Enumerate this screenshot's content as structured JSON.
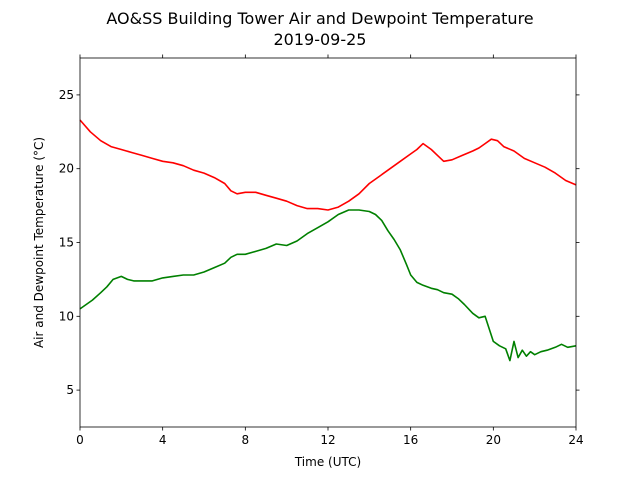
{
  "chart_data": {
    "type": "line",
    "title": "AO&SS Building Tower Air and Dewpoint Temperature",
    "subtitle": "2019-09-25",
    "xlabel": "Time (UTC)",
    "ylabel": "Air and Dewpoint Temperature (°C)",
    "xlim": [
      0,
      24
    ],
    "ylim": [
      2.5,
      27.5
    ],
    "xticks": [
      0,
      4,
      8,
      12,
      16,
      20,
      24
    ],
    "yticks": [
      5,
      10,
      15,
      20,
      25
    ],
    "grid": false,
    "series": [
      {
        "color": "#ff0000",
        "x": [
          0,
          0.5,
          1,
          1.5,
          2,
          2.5,
          3,
          3.5,
          4,
          4.5,
          5,
          5.5,
          6,
          6.5,
          7,
          7.3,
          7.6,
          8,
          8.5,
          9,
          9.5,
          10,
          10.5,
          11,
          11.5,
          12,
          12.5,
          13,
          13.5,
          14,
          14.5,
          15,
          15.5,
          16,
          16.3,
          16.6,
          17,
          17.3,
          17.6,
          18,
          18.5,
          19,
          19.3,
          19.6,
          19.9,
          20.2,
          20.5,
          21,
          21.5,
          22,
          22.5,
          23,
          23.5,
          24
        ],
        "y": [
          23.3,
          22.5,
          21.9,
          21.5,
          21.3,
          21.1,
          20.9,
          20.7,
          20.5,
          20.4,
          20.2,
          19.9,
          19.7,
          19.4,
          19.0,
          18.5,
          18.3,
          18.4,
          18.4,
          18.2,
          18.0,
          17.8,
          17.5,
          17.3,
          17.3,
          17.2,
          17.4,
          17.8,
          18.3,
          19.0,
          19.5,
          20.0,
          20.5,
          21.0,
          21.3,
          21.7,
          21.3,
          20.9,
          20.5,
          20.6,
          20.9,
          21.2,
          21.4,
          21.7,
          22.0,
          21.9,
          21.5,
          21.2,
          20.7,
          20.4,
          20.1,
          19.7,
          19.2,
          18.9
        ]
      },
      {
        "color": "#008000",
        "x": [
          0,
          0.3,
          0.6,
          1,
          1.3,
          1.6,
          2,
          2.3,
          2.6,
          3,
          3.5,
          4,
          4.5,
          5,
          5.5,
          6,
          6.5,
          7,
          7.3,
          7.6,
          8,
          8.5,
          9,
          9.5,
          10,
          10.5,
          11,
          11.5,
          12,
          12.5,
          13,
          13.5,
          14,
          14.3,
          14.6,
          14.9,
          15.2,
          15.5,
          15.8,
          16,
          16.3,
          16.6,
          17,
          17.3,
          17.6,
          18,
          18.3,
          18.6,
          19,
          19.3,
          19.6,
          20,
          20.3,
          20.6,
          20.8,
          21,
          21.2,
          21.4,
          21.6,
          21.8,
          22,
          22.3,
          22.6,
          23,
          23.3,
          23.6,
          24
        ],
        "y": [
          10.5,
          10.8,
          11.1,
          11.6,
          12.0,
          12.5,
          12.7,
          12.5,
          12.4,
          12.4,
          12.4,
          12.6,
          12.7,
          12.8,
          12.8,
          13.0,
          13.3,
          13.6,
          14.0,
          14.2,
          14.2,
          14.4,
          14.6,
          14.9,
          14.8,
          15.1,
          15.6,
          16.0,
          16.4,
          16.9,
          17.2,
          17.2,
          17.1,
          16.9,
          16.5,
          15.8,
          15.2,
          14.5,
          13.5,
          12.8,
          12.3,
          12.1,
          11.9,
          11.8,
          11.6,
          11.5,
          11.2,
          10.8,
          10.2,
          9.9,
          10.0,
          8.3,
          8.0,
          7.8,
          7.0,
          8.3,
          7.2,
          7.7,
          7.3,
          7.6,
          7.4,
          7.6,
          7.7,
          7.9,
          8.1,
          7.9,
          8.0
        ]
      }
    ]
  }
}
